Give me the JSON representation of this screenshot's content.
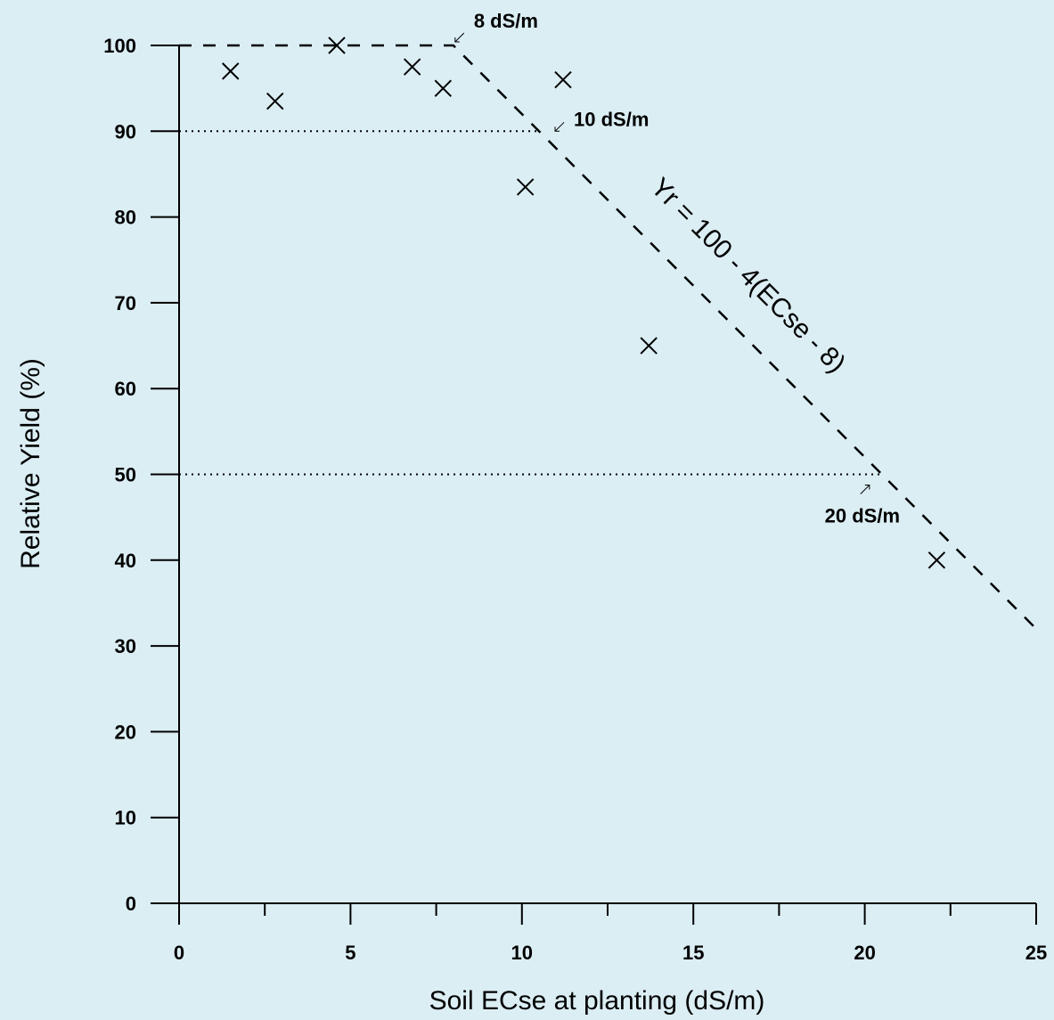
{
  "chart_data": {
    "type": "scatter",
    "xlabel": "Soil ECse at planting (dS/m)",
    "ylabel": "Relative Yield (%)",
    "xlim": [
      0,
      25
    ],
    "ylim": [
      0,
      100
    ],
    "x_ticks": [
      0,
      5,
      10,
      15,
      20,
      25
    ],
    "y_ticks": [
      0,
      10,
      20,
      30,
      40,
      50,
      60,
      70,
      80,
      90,
      100
    ],
    "grid": false,
    "marker": "x",
    "points": [
      {
        "x": 1.5,
        "y": 97
      },
      {
        "x": 2.8,
        "y": 93.5
      },
      {
        "x": 4.6,
        "y": 100
      },
      {
        "x": 6.8,
        "y": 97.5
      },
      {
        "x": 7.7,
        "y": 95
      },
      {
        "x": 10.1,
        "y": 83.5
      },
      {
        "x": 11.2,
        "y": 96
      },
      {
        "x": 13.7,
        "y": 65
      },
      {
        "x": 22.1,
        "y": 40
      }
    ],
    "model_line": {
      "label": "Yr = 100 - 4(ECse - 8)",
      "points": [
        {
          "x": 0,
          "y": 100
        },
        {
          "x": 8,
          "y": 100
        },
        {
          "x": 25,
          "y": 32
        }
      ]
    },
    "guides": [
      {
        "y": 90,
        "x_end": 10.5
      },
      {
        "y": 50,
        "x_end": 20.5
      }
    ],
    "annotations": [
      {
        "text": "8 dS/m",
        "x": 8,
        "y": 100
      },
      {
        "text": "10 dS/m",
        "x": 10.5,
        "y": 90
      },
      {
        "text": "20 dS/m",
        "x": 20.5,
        "y": 50
      }
    ]
  }
}
